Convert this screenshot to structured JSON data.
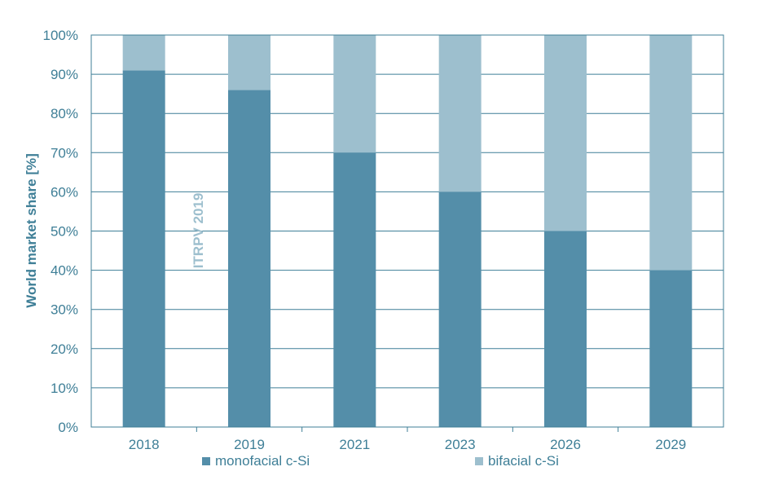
{
  "chart_data": {
    "type": "bar",
    "stacked": true,
    "categories": [
      "2018",
      "2019",
      "2021",
      "2023",
      "2026",
      "2029"
    ],
    "series": [
      {
        "name": "monofacial c-Si",
        "values": [
          91,
          86,
          70,
          60,
          50,
          40
        ],
        "color": "#548ea9"
      },
      {
        "name": "bifacial c-Si",
        "values": [
          9,
          14,
          30,
          40,
          50,
          60
        ],
        "color": "#9dbfce"
      }
    ],
    "title": "",
    "xlabel": "",
    "ylabel": "World market share [%]",
    "ylim": [
      0,
      100
    ],
    "yticks": [
      "0%",
      "10%",
      "20%",
      "30%",
      "40%",
      "50%",
      "60%",
      "70%",
      "80%",
      "90%",
      "100%"
    ],
    "annotation": "ITRPV 2019",
    "grid": true,
    "legend_position": "bottom",
    "colors": {
      "axis": "#3f7f97",
      "grid": "#3f7f97"
    }
  }
}
